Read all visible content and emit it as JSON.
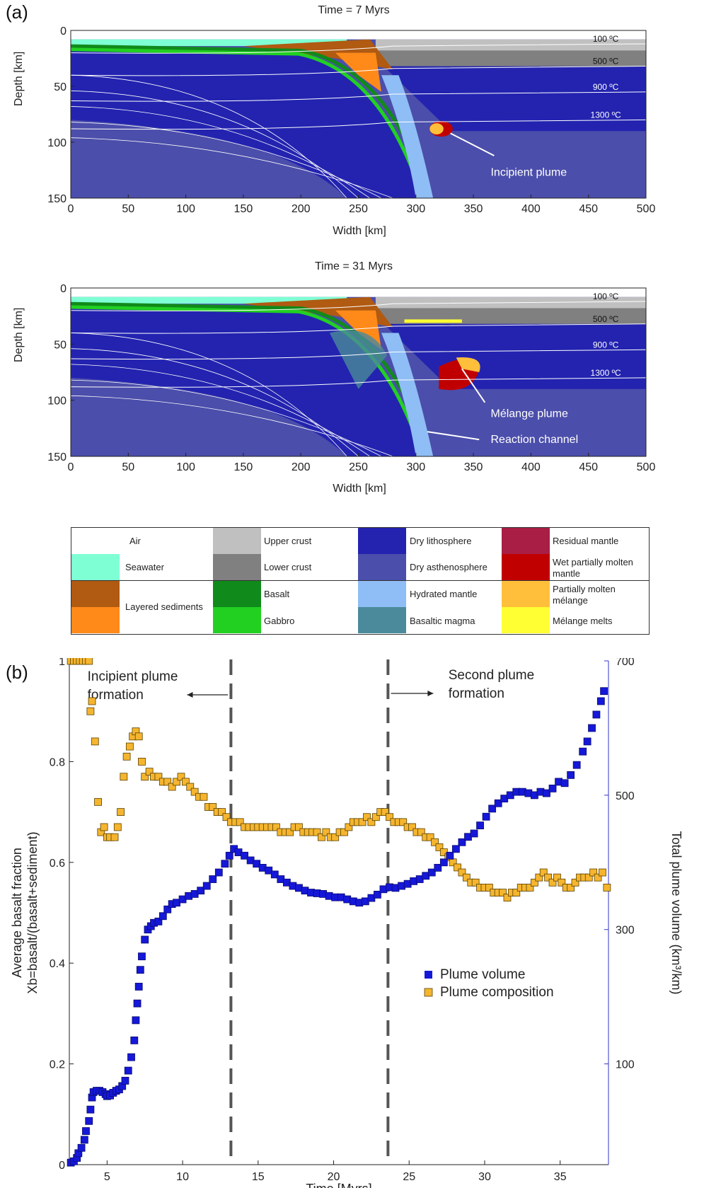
{
  "labels": {
    "panel_a": "(a)",
    "panel_b": "(b)"
  },
  "sections": [
    {
      "title": "Time = 7 Myrs",
      "xlabel": "Width [km]",
      "ylabel": "Depth [km]",
      "x_ticks": [
        "0",
        "50",
        "100",
        "150",
        "200",
        "250",
        "300",
        "350",
        "400",
        "450",
        "500"
      ],
      "y_ticks": [
        "0",
        "50",
        "100",
        "150"
      ],
      "isotherms": [
        "100 ºC",
        "500 ºC",
        "900 ºC",
        "1300 ºC"
      ],
      "annotations": [
        "Incipient plume"
      ]
    },
    {
      "title": "Time = 31 Myrs",
      "xlabel": "Width [km]",
      "ylabel": "Depth [km]",
      "x_ticks": [
        "0",
        "50",
        "100",
        "150",
        "200",
        "250",
        "300",
        "350",
        "400",
        "450",
        "500"
      ],
      "y_ticks": [
        "0",
        "50",
        "100",
        "150"
      ],
      "isotherms": [
        "100 ºC",
        "500 ºC",
        "900 ºC",
        "1300 ºC"
      ],
      "annotations": [
        "Mélange plume",
        "Reaction channel"
      ]
    }
  ],
  "colors": {
    "air": "#ffffff",
    "seawater": "#7fffd4",
    "sediment_dark": "#b05a12",
    "sediment_light": "#ff8a1a",
    "upper_crust": "#c0c0c0",
    "lower_crust": "#808080",
    "basalt": "#108a1a",
    "gabbro": "#22d022",
    "dry_lithosphere": "#2323b0",
    "dry_asthenosphere": "#4b4eaa",
    "hydrated_mantle": "#8fbdf5",
    "basaltic_magma": "#4a8a9a",
    "residual_mantle": "#a81e44",
    "wet_partially_molten": "#c00000",
    "partially_molten_melange": "#ffbf3a",
    "melange_melts": "#ffff33",
    "isotherm": "#ffffff",
    "plume_volume": "#1518d8",
    "plume_composition": "#f5b52f",
    "right_axis": "#3333cc",
    "dashed_line": "#555555"
  },
  "legend": [
    {
      "label": "Air",
      "color": "#ffffff"
    },
    {
      "label": "Seawater",
      "color": "#7fffd4"
    },
    {
      "label": "Layered sediments",
      "color": "#b05a12"
    },
    {
      "label": "Upper crust",
      "color": "#c0c0c0"
    },
    {
      "label": "Lower crust",
      "color": "#808080"
    },
    {
      "label": "Basalt",
      "color": "#108a1a"
    },
    {
      "label": "Gabbro",
      "color": "#22d022"
    },
    {
      "label": "Dry lithosphere",
      "color": "#2323b0"
    },
    {
      "label": "Dry asthenosphere",
      "color": "#4b4eaa"
    },
    {
      "label": "Hydrated mantle",
      "color": "#8fbdf5"
    },
    {
      "label": "Basaltic magma",
      "color": "#4a8a9a"
    },
    {
      "label": "Residual mantle",
      "color": "#a81e44"
    },
    {
      "label": "Wet partially molten mantle",
      "color": "#c00000"
    },
    {
      "label": "Partially molten mélange",
      "color": "#ffbf3a"
    },
    {
      "label": "Mélange melts",
      "color": "#ffff33"
    }
  ],
  "chart_data": {
    "type": "scatter",
    "title": "",
    "xlabel": "Time [Myrs]",
    "ylabel_left_line1": "Average basalt fraction",
    "ylabel_left_line2": "Xb=basalt/(basalt+sediment)",
    "ylabel_right": "Total plume volume (km³/km)",
    "xlim": [
      2.5,
      38.2
    ],
    "ylim_left": [
      0,
      1
    ],
    "ylim_right": [
      -50,
      700
    ],
    "x_ticks": [
      5,
      10,
      15,
      20,
      25,
      30,
      35
    ],
    "y_ticks_left": [
      0,
      0.2,
      0.4,
      0.6,
      0.8,
      1
    ],
    "y_ticks_right": [
      100,
      300,
      500,
      700
    ],
    "legend_position": "lower-right",
    "vlines": [
      13.2,
      23.6
    ],
    "annotations": {
      "left": "Incipient plume\nformation",
      "right": "Second plume\nformation"
    },
    "series": [
      {
        "name": "Plume volume",
        "axis": "right",
        "points": [
          [
            2.6,
            -47
          ],
          [
            2.8,
            -45
          ],
          [
            3.0,
            -40
          ],
          [
            3.1,
            -33
          ],
          [
            3.3,
            -25
          ],
          [
            3.5,
            -13
          ],
          [
            3.6,
            0
          ],
          [
            3.8,
            15
          ],
          [
            3.9,
            32
          ],
          [
            4.0,
            50
          ],
          [
            4.1,
            58
          ],
          [
            4.3,
            60
          ],
          [
            4.5,
            60
          ],
          [
            4.7,
            58
          ],
          [
            4.9,
            55
          ],
          [
            5.0,
            52
          ],
          [
            5.2,
            53
          ],
          [
            5.4,
            57
          ],
          [
            5.6,
            60
          ],
          [
            5.8,
            62
          ],
          [
            6.0,
            67
          ],
          [
            6.2,
            75
          ],
          [
            6.4,
            90
          ],
          [
            6.6,
            110
          ],
          [
            6.8,
            135
          ],
          [
            6.9,
            165
          ],
          [
            7.0,
            190
          ],
          [
            7.1,
            215
          ],
          [
            7.2,
            240
          ],
          [
            7.3,
            260
          ],
          [
            7.5,
            285
          ],
          [
            7.7,
            300
          ],
          [
            7.9,
            305
          ],
          [
            8.1,
            310
          ],
          [
            8.4,
            312
          ],
          [
            8.7,
            320
          ],
          [
            9.0,
            330
          ],
          [
            9.3,
            338
          ],
          [
            9.6,
            340
          ],
          [
            10.0,
            345
          ],
          [
            10.4,
            350
          ],
          [
            10.8,
            353
          ],
          [
            11.2,
            358
          ],
          [
            11.6,
            365
          ],
          [
            12.0,
            375
          ],
          [
            12.4,
            385
          ],
          [
            12.8,
            398
          ],
          [
            13.1,
            410
          ],
          [
            13.4,
            420
          ],
          [
            13.7,
            415
          ],
          [
            14.1,
            410
          ],
          [
            14.5,
            403
          ],
          [
            14.9,
            398
          ],
          [
            15.3,
            392
          ],
          [
            15.7,
            388
          ],
          [
            16.1,
            382
          ],
          [
            16.5,
            375
          ],
          [
            16.9,
            370
          ],
          [
            17.3,
            365
          ],
          [
            17.7,
            362
          ],
          [
            18.1,
            358
          ],
          [
            18.5,
            355
          ],
          [
            18.9,
            354
          ],
          [
            19.3,
            353
          ],
          [
            19.7,
            350
          ],
          [
            20.1,
            348
          ],
          [
            20.5,
            348
          ],
          [
            20.9,
            345
          ],
          [
            21.3,
            342
          ],
          [
            21.7,
            340
          ],
          [
            22.1,
            342
          ],
          [
            22.5,
            347
          ],
          [
            22.9,
            352
          ],
          [
            23.3,
            360
          ],
          [
            23.7,
            363
          ],
          [
            24.1,
            362
          ],
          [
            24.5,
            365
          ],
          [
            24.9,
            368
          ],
          [
            25.3,
            372
          ],
          [
            25.7,
            375
          ],
          [
            26.1,
            380
          ],
          [
            26.5,
            385
          ],
          [
            26.9,
            392
          ],
          [
            27.3,
            400
          ],
          [
            27.7,
            410
          ],
          [
            28.1,
            420
          ],
          [
            28.5,
            430
          ],
          [
            28.9,
            438
          ],
          [
            29.3,
            443
          ],
          [
            29.7,
            455
          ],
          [
            30.1,
            468
          ],
          [
            30.5,
            480
          ],
          [
            30.9,
            488
          ],
          [
            31.3,
            495
          ],
          [
            31.7,
            500
          ],
          [
            32.1,
            505
          ],
          [
            32.5,
            505
          ],
          [
            32.9,
            503
          ],
          [
            33.3,
            500
          ],
          [
            33.7,
            505
          ],
          [
            34.1,
            503
          ],
          [
            34.5,
            510
          ],
          [
            34.9,
            520
          ],
          [
            35.3,
            518
          ],
          [
            35.7,
            530
          ],
          [
            36.1,
            545
          ],
          [
            36.5,
            565
          ],
          [
            36.8,
            580
          ],
          [
            37.1,
            600
          ],
          [
            37.4,
            620
          ],
          [
            37.7,
            640
          ],
          [
            37.9,
            655
          ]
        ]
      },
      {
        "name": "Plume composition",
        "axis": "left",
        "points": [
          [
            2.6,
            1.0
          ],
          [
            2.8,
            1.0
          ],
          [
            3.0,
            1.0
          ],
          [
            3.2,
            1.0
          ],
          [
            3.4,
            1.0
          ],
          [
            3.6,
            1.0
          ],
          [
            3.8,
            1.0
          ],
          [
            3.9,
            0.9
          ],
          [
            4.0,
            0.92
          ],
          [
            4.2,
            0.84
          ],
          [
            4.4,
            0.72
          ],
          [
            4.6,
            0.66
          ],
          [
            4.8,
            0.67
          ],
          [
            5.0,
            0.65
          ],
          [
            5.2,
            0.65
          ],
          [
            5.5,
            0.65
          ],
          [
            5.7,
            0.67
          ],
          [
            5.9,
            0.7
          ],
          [
            6.1,
            0.77
          ],
          [
            6.3,
            0.81
          ],
          [
            6.5,
            0.83
          ],
          [
            6.7,
            0.85
          ],
          [
            6.9,
            0.86
          ],
          [
            7.1,
            0.85
          ],
          [
            7.3,
            0.8
          ],
          [
            7.5,
            0.77
          ],
          [
            7.8,
            0.78
          ],
          [
            8.1,
            0.77
          ],
          [
            8.4,
            0.77
          ],
          [
            8.7,
            0.76
          ],
          [
            9.0,
            0.76
          ],
          [
            9.3,
            0.75
          ],
          [
            9.6,
            0.76
          ],
          [
            9.9,
            0.77
          ],
          [
            10.2,
            0.76
          ],
          [
            10.5,
            0.75
          ],
          [
            10.8,
            0.74
          ],
          [
            11.1,
            0.73
          ],
          [
            11.4,
            0.73
          ],
          [
            11.7,
            0.71
          ],
          [
            12.0,
            0.71
          ],
          [
            12.3,
            0.7
          ],
          [
            12.6,
            0.7
          ],
          [
            12.9,
            0.69
          ],
          [
            13.2,
            0.68
          ],
          [
            13.5,
            0.68
          ],
          [
            13.8,
            0.68
          ],
          [
            14.1,
            0.67
          ],
          [
            14.4,
            0.67
          ],
          [
            14.7,
            0.67
          ],
          [
            15.0,
            0.67
          ],
          [
            15.3,
            0.67
          ],
          [
            15.6,
            0.67
          ],
          [
            15.9,
            0.67
          ],
          [
            16.2,
            0.67
          ],
          [
            16.5,
            0.66
          ],
          [
            16.8,
            0.66
          ],
          [
            17.1,
            0.66
          ],
          [
            17.4,
            0.67
          ],
          [
            17.7,
            0.67
          ],
          [
            18.0,
            0.66
          ],
          [
            18.3,
            0.66
          ],
          [
            18.6,
            0.66
          ],
          [
            18.9,
            0.66
          ],
          [
            19.2,
            0.65
          ],
          [
            19.5,
            0.66
          ],
          [
            19.8,
            0.65
          ],
          [
            20.1,
            0.65
          ],
          [
            20.4,
            0.66
          ],
          [
            20.7,
            0.66
          ],
          [
            21.0,
            0.67
          ],
          [
            21.3,
            0.68
          ],
          [
            21.6,
            0.68
          ],
          [
            21.9,
            0.68
          ],
          [
            22.2,
            0.69
          ],
          [
            22.5,
            0.68
          ],
          [
            22.8,
            0.69
          ],
          [
            23.1,
            0.7
          ],
          [
            23.4,
            0.7
          ],
          [
            23.7,
            0.69
          ],
          [
            24.0,
            0.68
          ],
          [
            24.3,
            0.68
          ],
          [
            24.6,
            0.68
          ],
          [
            24.9,
            0.67
          ],
          [
            25.2,
            0.67
          ],
          [
            25.5,
            0.66
          ],
          [
            25.8,
            0.66
          ],
          [
            26.1,
            0.65
          ],
          [
            26.4,
            0.65
          ],
          [
            26.7,
            0.64
          ],
          [
            27.0,
            0.63
          ],
          [
            27.3,
            0.62
          ],
          [
            27.6,
            0.61
          ],
          [
            27.9,
            0.6
          ],
          [
            28.2,
            0.59
          ],
          [
            28.5,
            0.58
          ],
          [
            28.8,
            0.57
          ],
          [
            29.1,
            0.56
          ],
          [
            29.4,
            0.56
          ],
          [
            29.7,
            0.55
          ],
          [
            30.0,
            0.55
          ],
          [
            30.3,
            0.55
          ],
          [
            30.6,
            0.54
          ],
          [
            30.9,
            0.54
          ],
          [
            31.2,
            0.54
          ],
          [
            31.5,
            0.53
          ],
          [
            31.8,
            0.54
          ],
          [
            32.1,
            0.54
          ],
          [
            32.4,
            0.55
          ],
          [
            32.7,
            0.55
          ],
          [
            33.0,
            0.55
          ],
          [
            33.3,
            0.56
          ],
          [
            33.6,
            0.57
          ],
          [
            33.9,
            0.58
          ],
          [
            34.2,
            0.57
          ],
          [
            34.5,
            0.56
          ],
          [
            34.8,
            0.57
          ],
          [
            35.1,
            0.56
          ],
          [
            35.4,
            0.55
          ],
          [
            35.7,
            0.55
          ],
          [
            36.0,
            0.56
          ],
          [
            36.3,
            0.57
          ],
          [
            36.6,
            0.57
          ],
          [
            36.9,
            0.57
          ],
          [
            37.2,
            0.58
          ],
          [
            37.5,
            0.57
          ],
          [
            37.8,
            0.58
          ],
          [
            38.1,
            0.55
          ]
        ]
      }
    ]
  }
}
